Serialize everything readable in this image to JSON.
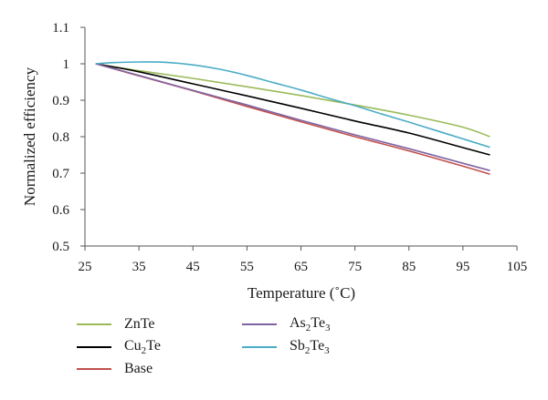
{
  "chart_data": {
    "type": "line",
    "title": "",
    "xlabel": "Temperature (˚C)",
    "ylabel": "Normalized efficiency",
    "xlim": [
      25,
      105
    ],
    "ylim": [
      0.5,
      1.1
    ],
    "xticks": [
      25,
      35,
      45,
      55,
      65,
      75,
      85,
      95,
      105
    ],
    "yticks": [
      0.5,
      0.6,
      0.7,
      0.8,
      0.9,
      1,
      1.1
    ],
    "xtick_labels": [
      "25",
      "35",
      "45",
      "55",
      "65",
      "75",
      "85",
      "95",
      "105"
    ],
    "ytick_labels": [
      "0.5",
      "0.6",
      "0.7",
      "0.8",
      "0.9",
      "1",
      "1.1"
    ],
    "grid": false,
    "legend_position": "bottom",
    "series": [
      {
        "name": "ZnTe",
        "color": "#9bbb59",
        "x": [
          27,
          35,
          45,
          55,
          65,
          75,
          85,
          95,
          100
        ],
        "y": [
          1.0,
          0.981,
          0.96,
          0.937,
          0.913,
          0.887,
          0.859,
          0.826,
          0.8
        ]
      },
      {
        "name": "Cu2Te",
        "color": "#000000",
        "x": [
          27,
          35,
          45,
          55,
          65,
          75,
          85,
          95,
          100
        ],
        "y": [
          1.0,
          0.978,
          0.945,
          0.912,
          0.878,
          0.843,
          0.81,
          0.77,
          0.75
        ]
      },
      {
        "name": "Base",
        "color": "#c0504d",
        "x": [
          27,
          35,
          45,
          55,
          65,
          75,
          85,
          95,
          100
        ],
        "y": [
          1.0,
          0.967,
          0.926,
          0.883,
          0.841,
          0.8,
          0.761,
          0.719,
          0.697
        ]
      },
      {
        "name": "As2Te3",
        "color": "#8064a2",
        "x": [
          27,
          35,
          45,
          55,
          65,
          75,
          85,
          95,
          100
        ],
        "y": [
          1.0,
          0.968,
          0.927,
          0.887,
          0.845,
          0.805,
          0.767,
          0.727,
          0.707
        ]
      },
      {
        "name": "Sb2Te3",
        "color": "#4bacc6",
        "x": [
          27,
          30,
          35,
          40,
          45,
          50,
          55,
          60,
          65,
          70,
          75,
          80,
          85,
          90,
          95,
          100
        ],
        "y": [
          1.0,
          1.003,
          1.005,
          1.004,
          0.997,
          0.985,
          0.968,
          0.948,
          0.928,
          0.906,
          0.885,
          0.862,
          0.84,
          0.817,
          0.794,
          0.771
        ]
      }
    ]
  },
  "legend": {
    "items": [
      {
        "base": "ZnTe",
        "sub1": "",
        "mid": "",
        "sub2": ""
      },
      {
        "base": "Cu",
        "sub1": "2",
        "mid": "Te",
        "sub2": ""
      },
      {
        "base": "Base",
        "sub1": "",
        "mid": "",
        "sub2": ""
      },
      {
        "base": "As",
        "sub1": "2",
        "mid": "Te",
        "sub2": "3"
      },
      {
        "base": "Sb",
        "sub1": "2",
        "mid": "Te",
        "sub2": "3"
      }
    ]
  }
}
